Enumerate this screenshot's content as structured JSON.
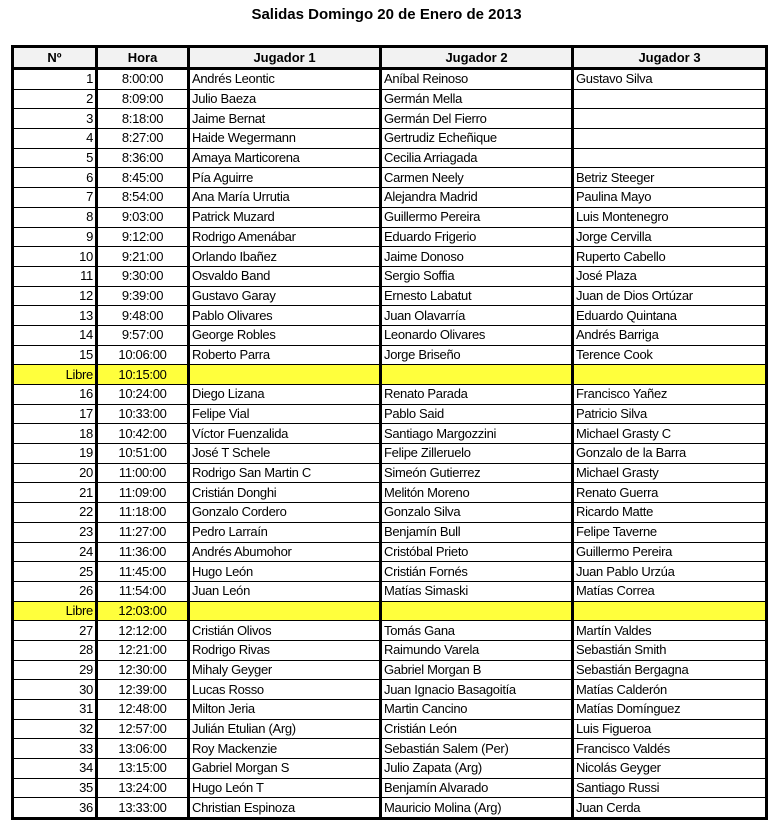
{
  "title": "Salidas Domingo 20 de Enero de 2013",
  "headers": [
    "Nº",
    "Hora",
    "Jugador 1",
    "Jugador 2",
    "Jugador 3"
  ],
  "highlight_color": "#ffff3c",
  "rows": [
    {
      "n": "1",
      "hora": "8:00:00",
      "j1": "Andrés Leontic",
      "j2": "Aníbal Reinoso",
      "j3": "Gustavo Silva"
    },
    {
      "n": "2",
      "hora": "8:09:00",
      "j1": "Julio Baeza",
      "j2": "Germán Mella",
      "j3": ""
    },
    {
      "n": "3",
      "hora": "8:18:00",
      "j1": "Jaime Bernat",
      "j2": "Germán Del Fierro",
      "j3": ""
    },
    {
      "n": "4",
      "hora": "8:27:00",
      "j1": "Haide Wegermann",
      "j2": "Gertrudiz Echeñique",
      "j3": ""
    },
    {
      "n": "5",
      "hora": "8:36:00",
      "j1": "Amaya Marticorena",
      "j2": "Cecilia Arriagada",
      "j3": ""
    },
    {
      "n": "6",
      "hora": "8:45:00",
      "j1": "Pía Aguirre",
      "j2": "Carmen Neely",
      "j3": "Betriz Steeger"
    },
    {
      "n": "7",
      "hora": "8:54:00",
      "j1": "Ana María Urrutia",
      "j2": "Alejandra Madrid",
      "j3": "Paulina Mayo"
    },
    {
      "n": "8",
      "hora": "9:03:00",
      "j1": "Patrick Muzard",
      "j2": "Guillermo Pereira",
      "j3": "Luis Montenegro"
    },
    {
      "n": "9",
      "hora": "9:12:00",
      "j1": "Rodrigo Amenábar",
      "j2": "Eduardo Frigerio",
      "j3": "Jorge Cervilla"
    },
    {
      "n": "10",
      "hora": "9:21:00",
      "j1": "Orlando Ibañez",
      "j2": "Jaime Donoso",
      "j3": "Ruperto Cabello"
    },
    {
      "n": "11",
      "hora": "9:30:00",
      "j1": "Osvaldo Band",
      "j2": "Sergio Soffia",
      "j3": "José Plaza"
    },
    {
      "n": "12",
      "hora": "9:39:00",
      "j1": "Gustavo Garay",
      "j2": "Ernesto Labatut",
      "j3": "Juan de Dios Ortúzar"
    },
    {
      "n": "13",
      "hora": "9:48:00",
      "j1": "Pablo Olivares",
      "j2": "Juan Olavarría",
      "j3": "Eduardo Quintana"
    },
    {
      "n": "14",
      "hora": "9:57:00",
      "j1": "George Robles",
      "j2": "Leonardo Olivares",
      "j3": "Andrés Barriga"
    },
    {
      "n": "15",
      "hora": "10:06:00",
      "j1": "Roberto Parra",
      "j2": "Jorge Briseño",
      "j3": "Terence Cook"
    },
    {
      "n": "Libre",
      "hora": "10:15:00",
      "j1": "",
      "j2": "",
      "j3": "",
      "libre": true
    },
    {
      "n": "16",
      "hora": "10:24:00",
      "j1": "Diego Lizana",
      "j2": "Renato Parada",
      "j3": "Francisco Yañez"
    },
    {
      "n": "17",
      "hora": "10:33:00",
      "j1": "Felipe Vial",
      "j2": "Pablo Said",
      "j3": "Patricio Silva"
    },
    {
      "n": "18",
      "hora": "10:42:00",
      "j1": "Víctor Fuenzalida",
      "j2": "Santiago Margozzini",
      "j3": "Michael Grasty C"
    },
    {
      "n": "19",
      "hora": "10:51:00",
      "j1": "José T Schele",
      "j2": "Felipe Zilleruelo",
      "j3": "Gonzalo de la Barra"
    },
    {
      "n": "20",
      "hora": "11:00:00",
      "j1": "Rodrigo San Martin C",
      "j2": "Simeón Gutierrez",
      "j3": "Michael Grasty"
    },
    {
      "n": "21",
      "hora": "11:09:00",
      "j1": "Cristián Donghi",
      "j2": "Melitón Moreno",
      "j3": "Renato Guerra"
    },
    {
      "n": "22",
      "hora": "11:18:00",
      "j1": "Gonzalo Cordero",
      "j2": "Gonzalo Silva",
      "j3": "Ricardo Matte"
    },
    {
      "n": "23",
      "hora": "11:27:00",
      "j1": "Pedro Larraín",
      "j2": "Benjamín Bull",
      "j3": "Felipe Taverne"
    },
    {
      "n": "24",
      "hora": "11:36:00",
      "j1": "Andrés Abumohor",
      "j2": "Cristóbal Prieto",
      "j3": "Guillermo Pereira"
    },
    {
      "n": "25",
      "hora": "11:45:00",
      "j1": "Hugo León",
      "j2": "Cristián Fornés",
      "j3": "Juan Pablo Urzúa"
    },
    {
      "n": "26",
      "hora": "11:54:00",
      "j1": "Juan León",
      "j2": "Matías Simaski",
      "j3": "Matías Correa"
    },
    {
      "n": "Libre",
      "hora": "12:03:00",
      "j1": "",
      "j2": "",
      "j3": "",
      "libre": true
    },
    {
      "n": "27",
      "hora": "12:12:00",
      "j1": "Cristián Olivos",
      "j2": "Tomás Gana",
      "j3": "Martín Valdes"
    },
    {
      "n": "28",
      "hora": "12:21:00",
      "j1": "Rodrigo Rivas",
      "j2": "Raimundo Varela",
      "j3": "Sebastián Smith"
    },
    {
      "n": "29",
      "hora": "12:30:00",
      "j1": "Mihaly Geyger",
      "j2": "Gabriel Morgan B",
      "j3": "Sebastián Bergagna"
    },
    {
      "n": "30",
      "hora": "12:39:00",
      "j1": "Lucas Rosso",
      "j2": "Juan Ignacio Basagoitía",
      "j3": "Matías Calderón"
    },
    {
      "n": "31",
      "hora": "12:48:00",
      "j1": "Milton Jeria",
      "j2": "Martin Cancino",
      "j3": "Matías Domínguez"
    },
    {
      "n": "32",
      "hora": "12:57:00",
      "j1": "Julián Etulian (Arg)",
      "j2": "Cristián León",
      "j3": "Luis Figueroa"
    },
    {
      "n": "33",
      "hora": "13:06:00",
      "j1": "Roy Mackenzie",
      "j2": "Sebastián Salem (Per)",
      "j3": "Francisco Valdés"
    },
    {
      "n": "34",
      "hora": "13:15:00",
      "j1": "Gabriel Morgan S",
      "j2": "Julio Zapata (Arg)",
      "j3": "Nicolás Geyger"
    },
    {
      "n": "35",
      "hora": "13:24:00",
      "j1": "Hugo León T",
      "j2": "Benjamín Alvarado",
      "j3": "Santiago Russi"
    },
    {
      "n": "36",
      "hora": "13:33:00",
      "j1": "Christian Espinoza",
      "j2": "Mauricio Molina (Arg)",
      "j3": "Juan Cerda"
    }
  ]
}
